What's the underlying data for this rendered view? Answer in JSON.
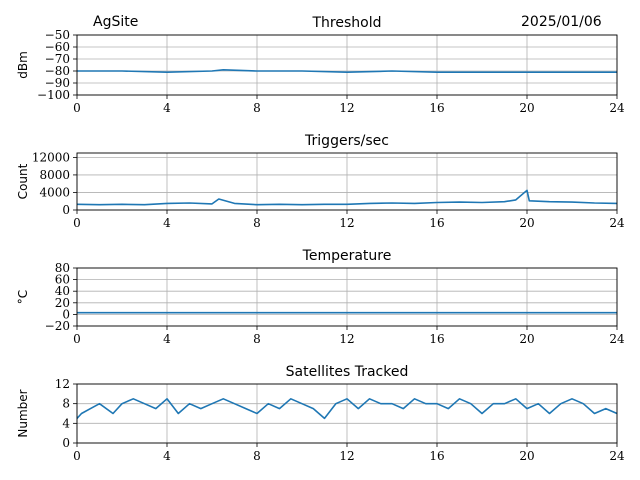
{
  "header": {
    "site": "AgSite",
    "date": "2025/01/06"
  },
  "series_color": "#1f77b4",
  "chart_data": [
    {
      "type": "line",
      "title": "Threshold",
      "ylabel": "dBm",
      "xlim": [
        0,
        24
      ],
      "ylim": [
        -100,
        -50
      ],
      "xticks": [
        "0",
        "4",
        "8",
        "12",
        "16",
        "20",
        "24"
      ],
      "yticks": [
        "−50",
        "−60",
        "−70",
        "−80",
        "−90",
        "−100"
      ],
      "x": [
        0,
        2,
        4,
        6,
        6.5,
        8,
        10,
        12,
        14,
        16,
        18,
        20,
        22,
        24
      ],
      "values": [
        -80,
        -80,
        -81,
        -80,
        -79,
        -80,
        -80,
        -81,
        -80,
        -81,
        -81,
        -81,
        -81,
        -81
      ]
    },
    {
      "type": "line",
      "title": "Triggers/sec",
      "ylabel": "Count",
      "xlim": [
        0,
        24
      ],
      "ylim": [
        0,
        13000
      ],
      "xticks": [
        "0",
        "4",
        "8",
        "12",
        "16",
        "20",
        "24"
      ],
      "yticks": [
        "12000",
        "8000",
        "4000",
        "0"
      ],
      "x": [
        0,
        1,
        2,
        3,
        4,
        5,
        6,
        6.3,
        7,
        8,
        9,
        10,
        11,
        12,
        13,
        14,
        15,
        16,
        17,
        18,
        19,
        19.5,
        20,
        20.1,
        21,
        22,
        23,
        24
      ],
      "values": [
        1300,
        1200,
        1300,
        1200,
        1500,
        1600,
        1400,
        2500,
        1500,
        1200,
        1300,
        1200,
        1300,
        1300,
        1500,
        1600,
        1500,
        1700,
        1800,
        1700,
        1900,
        2300,
        4500,
        2100,
        1900,
        1800,
        1600,
        1500
      ]
    },
    {
      "type": "line",
      "title": "Temperature",
      "ylabel": "°C",
      "xlim": [
        0,
        24
      ],
      "ylim": [
        -20,
        80
      ],
      "xticks": [
        "0",
        "4",
        "8",
        "12",
        "16",
        "20",
        "24"
      ],
      "yticks": [
        "80",
        "60",
        "40",
        "20",
        "0",
        "−20"
      ],
      "x": [
        0,
        24
      ],
      "values": [
        3,
        3
      ]
    },
    {
      "type": "line",
      "title": "Satellites Tracked",
      "ylabel": "Number",
      "xlim": [
        0,
        24
      ],
      "ylim": [
        0,
        12
      ],
      "xticks": [
        "0",
        "4",
        "8",
        "12",
        "16",
        "20",
        "24"
      ],
      "yticks": [
        "12",
        "8",
        "4",
        "0"
      ],
      "x": [
        0,
        0.2,
        0.6,
        1,
        1.6,
        2,
        2.5,
        3,
        3.5,
        4,
        4.5,
        5,
        5.5,
        6,
        6.5,
        7,
        7.5,
        8,
        8.5,
        9,
        9.5,
        10,
        10.5,
        11,
        11.5,
        12,
        12.5,
        13,
        13.5,
        14,
        14.5,
        15,
        15.5,
        16,
        16.5,
        17,
        17.5,
        18,
        18.5,
        19,
        19.5,
        20,
        20.5,
        21,
        21.5,
        22,
        22.5,
        23,
        23.5,
        24
      ],
      "values": [
        5,
        6,
        7,
        8,
        6,
        8,
        9,
        8,
        7,
        9,
        6,
        8,
        7,
        8,
        9,
        8,
        7,
        6,
        8,
        7,
        9,
        8,
        7,
        5,
        8,
        9,
        7,
        9,
        8,
        8,
        7,
        9,
        8,
        8,
        7,
        9,
        8,
        6,
        8,
        8,
        9,
        7,
        8,
        6,
        8,
        9,
        8,
        6,
        7,
        6
      ]
    }
  ]
}
